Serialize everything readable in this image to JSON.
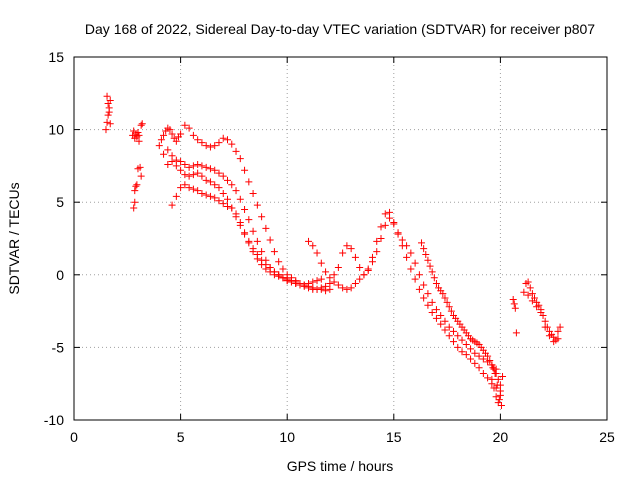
{
  "chart_data": {
    "type": "scatter",
    "title": "Day 168 of 2022, Sidereal Day-to-day VTEC variation (SDTVAR) for receiver p807",
    "xlabel": "GPS time / hours",
    "ylabel": "SDTVAR / TECUs",
    "xlim": [
      0,
      25
    ],
    "ylim": [
      -10,
      15
    ],
    "xticks": [
      0,
      5,
      10,
      15,
      20,
      25
    ],
    "yticks": [
      -10,
      -5,
      0,
      5,
      10,
      15
    ],
    "grid": true,
    "legend": "none",
    "marker": "+",
    "series_color": "#ff0000",
    "series": [
      {
        "name": "SDTVAR",
        "x": [
          1.5,
          1.55,
          1.6,
          1.65,
          1.7,
          1.55,
          1.6,
          1.65,
          1.7,
          2.75,
          2.8,
          2.85,
          2.9,
          2.95,
          3.0,
          3.05,
          2.8,
          2.85,
          2.9,
          3.0,
          3.1,
          3.15,
          3.2,
          2.85,
          2.95,
          3.05,
          3.15,
          4.0,
          4.1,
          4.2,
          4.3,
          4.4,
          4.5,
          4.6,
          4.7,
          4.8,
          4.9,
          5.0,
          5.2,
          5.4,
          5.6,
          5.8,
          6.0,
          6.2,
          6.4,
          6.6,
          6.8,
          7.0,
          7.2,
          7.4,
          7.6,
          7.8,
          8.0,
          8.2,
          8.4,
          8.6,
          8.8,
          9.0,
          9.2,
          9.4,
          9.6,
          9.8,
          10.0,
          10.2,
          10.4,
          10.6,
          10.8,
          11.0,
          11.2,
          11.4,
          11.6,
          11.8,
          12.0,
          4.2,
          4.4,
          4.6,
          4.8,
          5.0,
          5.2,
          5.4,
          5.6,
          5.8,
          6.0,
          6.2,
          6.4,
          6.6,
          6.8,
          7.0,
          7.2,
          7.4,
          7.6,
          7.8,
          8.0,
          8.2,
          8.4,
          8.6,
          8.8,
          9.0,
          9.2,
          9.4,
          9.6,
          9.8,
          10.0,
          10.2,
          10.4,
          10.6,
          10.8,
          11.0,
          11.2,
          11.4,
          11.6,
          4.4,
          4.6,
          4.8,
          5.0,
          5.2,
          5.4,
          5.6,
          5.8,
          6.0,
          6.2,
          6.4,
          6.6,
          6.8,
          7.0,
          7.2,
          7.4,
          7.6,
          7.8,
          8.0,
          8.2,
          8.4,
          8.6,
          8.8,
          9.0,
          9.2,
          9.4,
          9.6,
          9.8,
          10.0,
          10.2,
          10.4,
          4.6,
          4.8,
          5.0,
          5.2,
          5.4,
          5.6,
          5.8,
          6.0,
          6.2,
          6.4,
          6.6,
          6.8,
          7.0,
          7.2,
          7.4,
          7.6,
          7.8,
          8.0,
          8.2,
          8.4,
          8.6,
          8.8,
          9.0,
          9.2,
          9.4,
          9.6,
          9.8,
          10.0,
          10.2,
          10.4,
          10.6,
          10.8,
          11.0,
          11.2,
          11.4,
          11.6,
          11.8,
          12.0,
          12.2,
          12.4,
          12.6,
          12.8,
          13.0,
          13.2,
          13.4,
          13.6,
          13.8,
          14.0,
          14.2,
          14.4,
          14.6,
          14.8,
          15.0,
          15.2,
          15.4,
          15.6,
          15.8,
          16.0,
          16.2,
          16.4,
          16.6,
          16.8,
          17.0,
          17.2,
          17.4,
          17.6,
          17.8,
          18.0,
          18.2,
          18.4,
          18.6,
          18.8,
          19.0,
          19.2,
          19.4,
          19.6,
          19.8,
          20.0,
          11.0,
          11.2,
          11.4,
          11.6,
          11.8,
          12.0,
          12.2,
          12.4,
          12.6,
          12.8,
          13.0,
          13.2,
          13.4,
          13.6,
          13.8,
          14.0,
          14.2,
          14.4,
          14.6,
          14.8,
          15.0,
          15.2,
          15.4,
          15.6,
          15.8,
          16.0,
          16.2,
          16.4,
          16.6,
          16.8,
          17.0,
          17.2,
          17.4,
          17.6,
          17.8,
          18.0,
          18.2,
          18.4,
          18.6,
          18.8,
          19.0,
          19.2,
          19.4,
          19.6,
          19.8,
          16.3,
          16.4,
          16.5,
          16.6,
          16.7,
          16.8,
          16.9,
          17.0,
          17.1,
          17.2,
          17.3,
          17.4,
          17.5,
          17.6,
          17.7,
          17.8,
          17.9,
          18.0,
          18.1,
          18.2,
          18.3,
          18.4,
          18.5,
          18.6,
          18.7,
          18.8,
          18.9,
          19.0,
          19.1,
          19.2,
          19.3,
          19.4,
          19.5,
          19.6,
          19.7,
          19.8,
          19.9,
          20.0,
          19.6,
          19.7,
          19.8,
          19.9,
          20.0,
          20.1,
          19.65,
          19.75,
          19.85,
          19.95,
          20.05,
          20.6,
          20.65,
          20.7,
          20.75,
          21.1,
          21.2,
          21.3,
          21.4,
          21.5,
          21.6,
          21.7,
          21.8,
          21.9,
          22.0,
          22.1,
          22.2,
          22.3,
          22.4,
          22.5,
          22.6,
          22.7,
          22.8,
          21.3,
          21.5,
          21.7,
          21.9,
          22.1,
          22.3,
          22.5,
          22.7
        ],
        "y": [
          10.0,
          10.5,
          11.0,
          11.5,
          12.0,
          12.3,
          11.8,
          11.2,
          10.4,
          9.6,
          9.9,
          9.4,
          9.7,
          9.5,
          9.8,
          9.6,
          4.6,
          5.0,
          6.1,
          7.3,
          7.4,
          6.8,
          10.4,
          5.8,
          6.2,
          9.2,
          10.3,
          8.9,
          9.3,
          9.6,
          9.9,
          10.1,
          10.0,
          9.7,
          9.4,
          9.2,
          9.5,
          9.7,
          10.3,
          10.1,
          9.6,
          9.3,
          9.1,
          8.9,
          8.8,
          8.9,
          9.1,
          9.4,
          9.3,
          9.0,
          8.5,
          8.0,
          7.2,
          6.4,
          5.6,
          4.8,
          4.0,
          3.2,
          2.4,
          1.6,
          0.9,
          0.4,
          0.0,
          -0.2,
          -0.4,
          -0.6,
          -0.7,
          -0.8,
          -0.9,
          -1.0,
          -1.0,
          -1.1,
          -1.0,
          8.3,
          8.6,
          8.2,
          7.9,
          7.8,
          7.6,
          7.4,
          7.5,
          7.6,
          7.5,
          7.4,
          7.3,
          7.2,
          7.0,
          6.8,
          6.5,
          6.2,
          5.8,
          5.2,
          4.5,
          3.8,
          3.0,
          2.3,
          1.6,
          1.0,
          0.5,
          0.2,
          0.0,
          -0.2,
          -0.4,
          -0.5,
          -0.6,
          -0.6,
          -0.7,
          -0.6,
          -0.5,
          -0.4,
          -0.3,
          7.6,
          7.8,
          7.5,
          7.2,
          6.9,
          6.8,
          6.9,
          7.0,
          6.8,
          6.5,
          6.4,
          6.2,
          6.0,
          5.6,
          5.2,
          4.6,
          4.0,
          3.4,
          2.8,
          2.2,
          1.6,
          1.1,
          0.7,
          0.4,
          0.2,
          0.0,
          -0.1,
          -0.2,
          -0.3,
          -0.4,
          -0.5,
          4.8,
          5.4,
          6.0,
          6.2,
          6.0,
          5.9,
          5.8,
          5.6,
          5.5,
          5.4,
          5.3,
          5.1,
          4.9,
          4.7,
          4.6,
          4.2,
          3.6,
          2.9,
          2.3,
          1.8,
          1.4,
          1.0,
          0.7,
          0.5,
          0.2,
          0.0,
          -0.2,
          -0.4,
          -0.5,
          -0.6,
          -0.7,
          -0.8,
          -0.9,
          -1.0,
          -1.0,
          -0.9,
          -0.8,
          -0.6,
          -0.5,
          -0.7,
          -0.9,
          -1.0,
          -0.9,
          -0.6,
          -0.3,
          0.0,
          0.4,
          0.9,
          1.6,
          2.5,
          3.4,
          3.9,
          3.5,
          2.8,
          2.0,
          1.2,
          0.4,
          -0.3,
          -1.0,
          -1.6,
          -2.1,
          -2.6,
          -3.0,
          -3.4,
          -3.8,
          -4.2,
          -4.6,
          -5.0,
          -5.3,
          -5.5,
          -5.8,
          -6.1,
          -6.4,
          -6.8,
          -7.1,
          -7.5,
          -7.8,
          -8.3,
          2.3,
          2.0,
          1.5,
          0.8,
          0.2,
          -0.2,
          0.0,
          0.5,
          1.5,
          2.0,
          1.8,
          1.2,
          0.5,
          0.0,
          0.3,
          1.2,
          2.3,
          3.3,
          4.2,
          4.3,
          3.6,
          2.9,
          2.4,
          2.0,
          1.5,
          0.8,
          0.0,
          -0.7,
          -1.3,
          -1.9,
          -2.4,
          -2.8,
          -3.2,
          -3.6,
          -3.9,
          -4.2,
          -4.5,
          -4.8,
          -5.1,
          -5.4,
          -5.6,
          -5.8,
          -6.0,
          -6.2,
          -6.5,
          2.2,
          1.8,
          1.4,
          1.0,
          0.6,
          0.2,
          -0.2,
          -0.6,
          -0.9,
          -1.1,
          -1.3,
          -1.6,
          -1.9,
          -2.2,
          -2.5,
          -2.8,
          -3.0,
          -3.2,
          -3.4,
          -3.6,
          -3.8,
          -4.0,
          -4.2,
          -4.4,
          -4.5,
          -4.6,
          -4.7,
          -4.8,
          -5.0,
          -5.2,
          -5.4,
          -5.6,
          -5.9,
          -6.2,
          -6.5,
          -6.8,
          -7.2,
          -7.6,
          -7.2,
          -7.8,
          -8.4,
          -8.8,
          -8.0,
          -7.0,
          -6.4,
          -6.8,
          -7.6,
          -8.6,
          -9.0,
          -1.7,
          -2.0,
          -2.3,
          -4.0,
          -1.2,
          -0.6,
          -0.5,
          -0.9,
          -1.3,
          -1.6,
          -1.9,
          -2.1,
          -2.4,
          -2.8,
          -3.2,
          -3.6,
          -3.9,
          -4.1,
          -4.3,
          -4.5,
          -3.9,
          -3.6,
          -1.4,
          -1.8,
          -2.2,
          -2.6,
          -3.6,
          -4.2,
          -4.6,
          -4.4
        ]
      }
    ]
  }
}
